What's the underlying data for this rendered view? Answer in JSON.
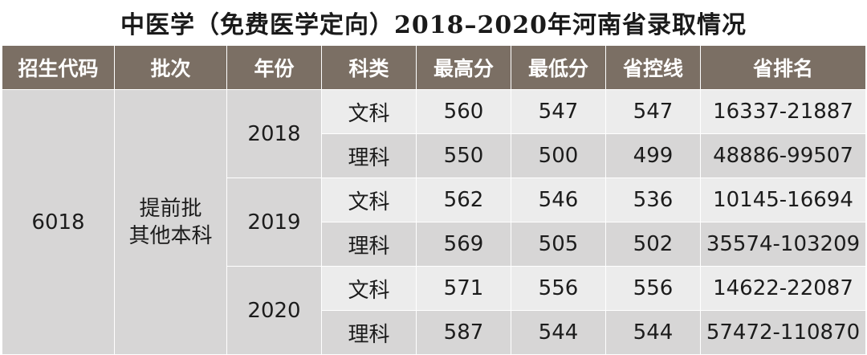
{
  "title": "中医学（免费医学定向）2018–2020年河南省录取情况",
  "headers": [
    "招生代码",
    "批次",
    "年份",
    "科类",
    "最高分",
    "最低分",
    "省控线",
    "省排名"
  ],
  "code": "6018",
  "batch_line1": "提前批",
  "batch_line2": "其他本科",
  "years": [
    {
      "year": "2018",
      "rows": [
        {
          "category": "文科",
          "max": "560",
          "min": "547",
          "control": "547",
          "rank": "16337-21887"
        },
        {
          "category": "理科",
          "max": "550",
          "min": "500",
          "control": "499",
          "rank": "48886-99507"
        }
      ]
    },
    {
      "year": "2019",
      "rows": [
        {
          "category": "文科",
          "max": "562",
          "min": "546",
          "control": "536",
          "rank": "10145-16694"
        },
        {
          "category": "理科",
          "max": "569",
          "min": "505",
          "control": "502",
          "rank": "35574-103209"
        }
      ]
    },
    {
      "year": "2020",
      "rows": [
        {
          "category": "文科",
          "max": "571",
          "min": "556",
          "control": "556",
          "rank": "14622-22087"
        },
        {
          "category": "理科",
          "max": "587",
          "min": "544",
          "control": "544",
          "rank": "57472-110870"
        }
      ]
    }
  ]
}
